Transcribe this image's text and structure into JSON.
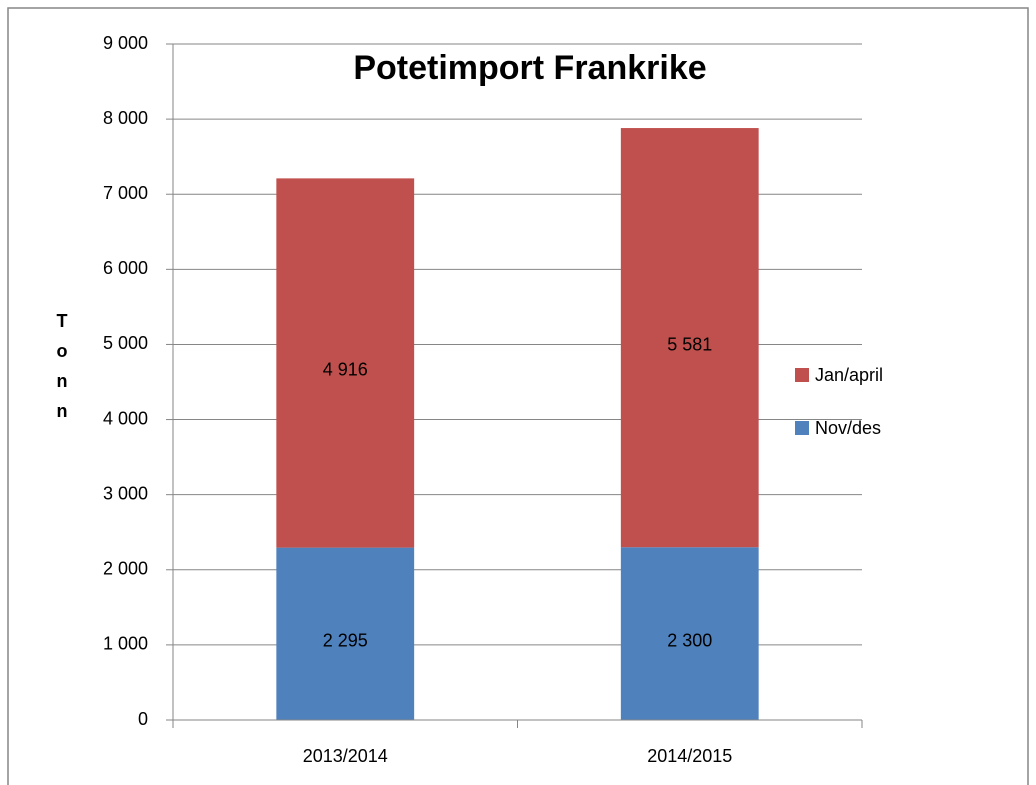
{
  "chart_data": {
    "type": "stacked_bar",
    "title": "Potetimport Frankrike",
    "ylabel": "Tonn",
    "categories": [
      "2013/2014",
      "2014/2015"
    ],
    "series": [
      {
        "name": "Nov/des",
        "color": "#4f81bd",
        "values": [
          2295,
          2300
        ],
        "value_labels": [
          "2 295",
          "2 300"
        ]
      },
      {
        "name": "Jan/april",
        "color": "#c0504d",
        "values": [
          4916,
          5581
        ],
        "value_labels": [
          "4 916",
          "5 581"
        ]
      }
    ],
    "ylim": [
      0,
      9000
    ],
    "yticks": [
      0,
      {
        "value": 1000,
        "label": "1 000"
      },
      {
        "value": 2000,
        "label": "2 000"
      },
      {
        "value": 3000,
        "label": "3 000"
      },
      {
        "value": 4000,
        "label": "4 000"
      },
      {
        "value": 5000,
        "label": "5 000"
      },
      {
        "value": 6000,
        "label": "6 000"
      },
      {
        "value": 7000,
        "label": "7 000"
      },
      {
        "value": 8000,
        "label": "8 000"
      },
      {
        "value": 9000,
        "label": "9 000"
      }
    ],
    "grid": true,
    "legend": "right"
  }
}
